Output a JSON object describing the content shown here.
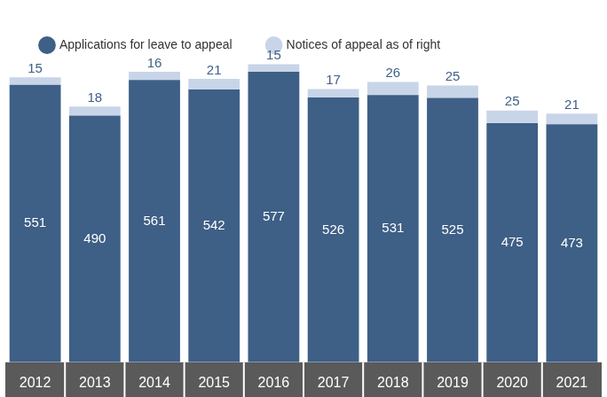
{
  "chart_data": {
    "type": "bar",
    "categories": [
      "2012",
      "2013",
      "2014",
      "2015",
      "2016",
      "2017",
      "2018",
      "2019",
      "2020",
      "2021"
    ],
    "series": [
      {
        "name": "Applications for leave to appeal",
        "color": "#3e5f86",
        "values": [
          551,
          490,
          561,
          542,
          577,
          526,
          531,
          525,
          475,
          473
        ]
      },
      {
        "name": "Notices of appeal as of right",
        "color": "#c8d5e8",
        "values": [
          15,
          18,
          16,
          21,
          15,
          17,
          26,
          25,
          25,
          21
        ]
      }
    ],
    "ylim": [
      0,
      600
    ],
    "stacked": true,
    "grid": false,
    "legend": "top-left",
    "data_labels": true,
    "tick_labels": "x"
  }
}
